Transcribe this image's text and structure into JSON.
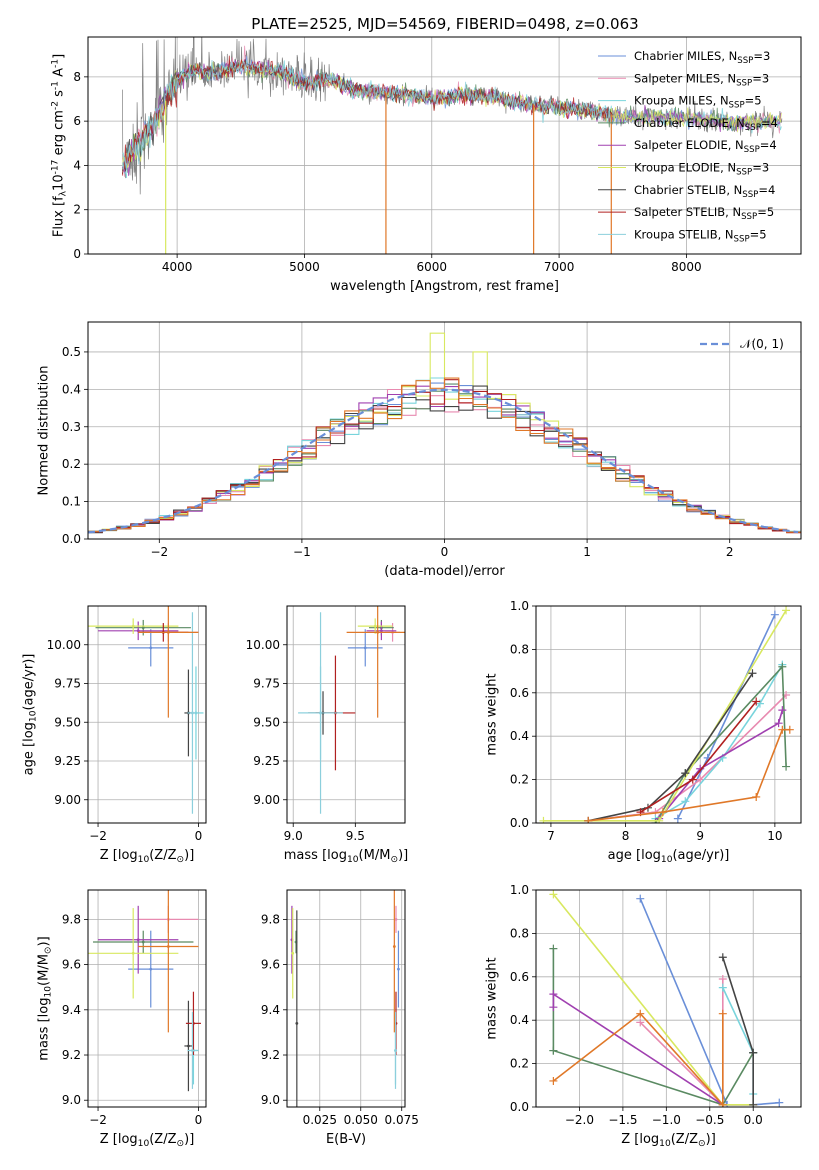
{
  "title": "PLATE=2525, MJD=54569, FIBERID=0498, z=0.063",
  "colors": {
    "Chabrier MILES": "#6a8fd8",
    "Salpeter MILES": "#e88ab0",
    "Kroupa MILES": "#78d4dc",
    "Chabrier ELODIE": "#5a8a62",
    "Salpeter ELODIE": "#a040b0",
    "Kroupa ELODIE": "#d8e860",
    "Chabrier STELIB": "#444444",
    "Salpeter STELIB": "#b02020",
    "Kroupa STELIB": "#8ccfdc",
    "orange": "#e07828",
    "gray": "#808080"
  },
  "chart_data": [
    {
      "id": "spectrum",
      "type": "line",
      "xlabel": "wavelength [Angstrom, rest frame]",
      "ylabel": "Flux [f$_λ$10$^{-17}$ erg cm$^{-2}$ s$^{-1}$ A$^{-1}$]",
      "xlim": [
        3300,
        8900
      ],
      "ylim": [
        0,
        9.8
      ],
      "xticks": [
        "4000",
        "5000",
        "6000",
        "7000",
        "8000"
      ],
      "yticks": [
        "0",
        "2",
        "4",
        "6",
        "8"
      ],
      "legend_position": "upper-right",
      "legend": [
        {
          "label": "Chabrier MILES, N",
          "sub": "SSP",
          "suffix": "=3"
        },
        {
          "label": "Salpeter MILES, N",
          "sub": "SSP",
          "suffix": "=3"
        },
        {
          "label": "Kroupa MILES, N",
          "sub": "SSP",
          "suffix": "=5"
        },
        {
          "label": "Chabrier ELODIE, N",
          "sub": "SSP",
          "suffix": "=4"
        },
        {
          "label": "Salpeter ELODIE, N",
          "sub": "SSP",
          "suffix": "=4"
        },
        {
          "label": "Kroupa ELODIE, N",
          "sub": "SSP",
          "suffix": "=3"
        },
        {
          "label": "Chabrier STELIB, N",
          "sub": "SSP",
          "suffix": "=4"
        },
        {
          "label": "Salpeter STELIB, N",
          "sub": "SSP",
          "suffix": "=5"
        },
        {
          "label": "Kroupa STELIB, N",
          "sub": "SSP",
          "suffix": "=5"
        }
      ],
      "continuum": [
        [
          3570,
          4.0
        ],
        [
          3650,
          4.6
        ],
        [
          3800,
          5.7
        ],
        [
          3900,
          6.8
        ],
        [
          4000,
          7.9
        ],
        [
          4100,
          8.3
        ],
        [
          4300,
          8.2
        ],
        [
          4500,
          8.5
        ],
        [
          4800,
          8.2
        ],
        [
          5000,
          7.7
        ],
        [
          5200,
          7.9
        ],
        [
          5400,
          7.4
        ],
        [
          5600,
          7.3
        ],
        [
          5800,
          7.2
        ],
        [
          6000,
          7.0
        ],
        [
          6300,
          7.2
        ],
        [
          6500,
          7.1
        ],
        [
          6700,
          6.8
        ],
        [
          6900,
          6.7
        ],
        [
          7200,
          6.5
        ],
        [
          7500,
          6.2
        ],
        [
          7800,
          6.2
        ],
        [
          8100,
          6.1
        ],
        [
          8400,
          5.9
        ],
        [
          8700,
          6.0
        ]
      ],
      "model_range": [
        3570,
        7420
      ],
      "spikes": [
        [
          5640,
          0
        ],
        [
          6800,
          0
        ],
        [
          7410,
          0
        ],
        [
          3910,
          0
        ]
      ]
    },
    {
      "id": "residuals",
      "type": "step-histogram",
      "xlabel": "(data-model)/error",
      "ylabel": "Normed distribution",
      "xlim": [
        -2.5,
        2.5
      ],
      "ylim": [
        0,
        0.58
      ],
      "xticks": [
        "−2",
        "−1",
        "0",
        "1",
        "2"
      ],
      "yticks": [
        "0.0",
        "0.1",
        "0.2",
        "0.3",
        "0.4",
        "0.5"
      ],
      "reference_curve": {
        "label": "𝒩(0, 1)",
        "mean": 0,
        "sigma": 1
      },
      "bin_width": 0.1,
      "peak_value": 0.55
    },
    {
      "id": "age-vs-Z",
      "type": "errorbar",
      "xlabel": "Z [log$_{10}$(Z/Z$_⊙$)]",
      "ylabel": "age  [log$_{10}$(age/yr)]",
      "xlim": [
        -2.2,
        0.15
      ],
      "ylim": [
        8.85,
        10.25
      ],
      "xticks": [
        "−2",
        "0"
      ],
      "yticks": [
        "9.00",
        "9.25",
        "9.50",
        "9.75",
        "10.00"
      ],
      "points": [
        {
          "series": "Chabrier MILES",
          "x": -0.95,
          "xerr": 0.45,
          "y": 9.98,
          "yerr": 0.12
        },
        {
          "series": "Salpeter MILES",
          "x": -0.6,
          "xerr": 0.6,
          "y": 10.08,
          "yerr": 0.06
        },
        {
          "series": "Kroupa MILES",
          "x": -0.05,
          "xerr": 0.15,
          "y": 9.56,
          "yerr": 0.3
        },
        {
          "series": "Chabrier ELODIE",
          "x": -1.1,
          "xerr": 0.95,
          "y": 10.11,
          "yerr": 0.05
        },
        {
          "series": "Salpeter ELODIE",
          "x": -1.2,
          "xerr": 0.8,
          "y": 10.09,
          "yerr": 0.06
        },
        {
          "series": "Kroupa ELODIE",
          "x": -1.3,
          "xerr": 0.9,
          "y": 10.12,
          "yerr": 0.05
        },
        {
          "series": "Chabrier STELIB",
          "x": -0.2,
          "xerr": 0.08,
          "y": 9.56,
          "yerr": 0.28
        },
        {
          "series": "Salpeter STELIB",
          "x": -0.7,
          "xerr": 0.5,
          "y": 10.08,
          "yerr": 0.06
        },
        {
          "series": "Kroupa STELIB",
          "x": -0.12,
          "xerr": 0.1,
          "y": 9.56,
          "yerr": 0.65
        },
        {
          "series": "orange",
          "x": -0.6,
          "xerr": 0.6,
          "y": 10.08,
          "yerr": 0.55
        }
      ]
    },
    {
      "id": "age-vs-mass",
      "type": "errorbar",
      "xlabel": "mass [log$_{10}$(M/M$_⊙$)]",
      "ylabel": "",
      "xlim": [
        8.95,
        9.9
      ],
      "ylim": [
        8.85,
        10.25
      ],
      "xticks": [
        "9.0",
        "9.5"
      ],
      "yticks": [
        "9.00",
        "9.25",
        "9.50",
        "9.75",
        "10.00"
      ],
      "points": [
        {
          "series": "Chabrier MILES",
          "x": 9.58,
          "xerr": 0.14,
          "y": 9.98,
          "yerr": 0.12
        },
        {
          "series": "Salpeter MILES",
          "x": 9.8,
          "xerr": 0.06,
          "y": 10.08,
          "yerr": 0.06
        },
        {
          "series": "Kroupa MILES",
          "x": 9.22,
          "xerr": 0.18,
          "y": 9.56,
          "yerr": 0.3
        },
        {
          "series": "Chabrier ELODIE",
          "x": 9.71,
          "xerr": 0.1,
          "y": 10.11,
          "yerr": 0.05
        },
        {
          "series": "Salpeter ELODIE",
          "x": 9.71,
          "xerr": 0.12,
          "y": 10.09,
          "yerr": 0.06
        },
        {
          "series": "Kroupa ELODIE",
          "x": 9.66,
          "xerr": 0.14,
          "y": 10.12,
          "yerr": 0.05
        },
        {
          "series": "Chabrier STELIB",
          "x": 9.24,
          "xerr": 0.12,
          "y": 9.56,
          "yerr": 0.14
        },
        {
          "series": "Salpeter STELIB",
          "x": 9.34,
          "xerr": 0.16,
          "y": 9.56,
          "yerr": 0.37
        },
        {
          "series": "Kroupa STELIB",
          "x": 9.22,
          "xerr": 0.18,
          "y": 9.56,
          "yerr": 0.65
        },
        {
          "series": "orange",
          "x": 9.68,
          "xerr": 0.25,
          "y": 10.08,
          "yerr": 0.55
        }
      ]
    },
    {
      "id": "weight-vs-age",
      "type": "line",
      "xlabel": "age  [log$_{10}$(age/yr)]",
      "ylabel": "mass weight",
      "xlim": [
        6.8,
        10.35
      ],
      "ylim": [
        0,
        1.0
      ],
      "xticks": [
        "7",
        "8",
        "9",
        "10"
      ],
      "yticks": [
        "0.0",
        "0.2",
        "0.4",
        "0.6",
        "0.8",
        "1.0"
      ],
      "series": [
        {
          "name": "Chabrier MILES",
          "x": [
            8.7,
            9.1,
            10.0
          ],
          "y": [
            0.02,
            0.3,
            0.96
          ]
        },
        {
          "name": "Salpeter MILES",
          "x": [
            7.5,
            8.4,
            9.0,
            10.15
          ],
          "y": [
            0.01,
            0.05,
            0.2,
            0.59
          ]
        },
        {
          "name": "Kroupa MILES",
          "x": [
            8.4,
            8.8,
            9.3,
            9.8,
            10.1
          ],
          "y": [
            0.02,
            0.1,
            0.3,
            0.55,
            0.73
          ]
        },
        {
          "name": "Chabrier ELODIE",
          "x": [
            8.4,
            8.8,
            10.1,
            10.15
          ],
          "y": [
            0.0,
            0.23,
            0.72,
            0.26
          ]
        },
        {
          "name": "Salpeter ELODIE",
          "x": [
            8.45,
            9.0,
            10.05,
            10.1
          ],
          "y": [
            0.02,
            0.25,
            0.46,
            0.52
          ]
        },
        {
          "name": "Kroupa ELODIE",
          "x": [
            6.9,
            8.45,
            10.15
          ],
          "y": [
            0.01,
            0.01,
            0.98
          ]
        },
        {
          "name": "Chabrier STELIB",
          "x": [
            7.5,
            8.3,
            8.8,
            9.7
          ],
          "y": [
            0.01,
            0.07,
            0.23,
            0.69
          ]
        },
        {
          "name": "Salpeter STELIB",
          "x": [
            8.2,
            8.9,
            9.75
          ],
          "y": [
            0.05,
            0.2,
            0.56
          ]
        },
        {
          "name": "orange",
          "x": [
            7.5,
            8.5,
            9.75,
            10.1,
            10.2
          ],
          "y": [
            0.01,
            0.05,
            0.12,
            0.43,
            0.43
          ]
        }
      ]
    },
    {
      "id": "mass-vs-Z",
      "type": "errorbar",
      "xlabel": "Z [log$_{10}$(Z/Z$_⊙$)]",
      "ylabel": "mass [log$_{10}$(M/M$_⊙$)]",
      "xlim": [
        -2.2,
        0.15
      ],
      "ylim": [
        8.97,
        9.93
      ],
      "xticks": [
        "−2",
        "0"
      ],
      "yticks": [
        "9.0",
        "9.2",
        "9.4",
        "9.6",
        "9.8"
      ],
      "points": [
        {
          "series": "Chabrier MILES",
          "x": -0.95,
          "xerr": 0.45,
          "y": 9.58,
          "yerr": 0.17
        },
        {
          "series": "Salpeter MILES",
          "x": -0.6,
          "xerr": 0.6,
          "y": 9.8,
          "yerr": 0.06
        },
        {
          "series": "Kroupa MILES",
          "x": -0.1,
          "xerr": 0.1,
          "y": 9.22,
          "yerr": 0.15
        },
        {
          "series": "Chabrier ELODIE",
          "x": -1.1,
          "xerr": 1.0,
          "y": 9.7,
          "yerr": 0.05
        },
        {
          "series": "Salpeter ELODIE",
          "x": -1.2,
          "xerr": 0.8,
          "y": 9.71,
          "yerr": 0.15
        },
        {
          "series": "Kroupa ELODIE",
          "x": -1.3,
          "xerr": 0.9,
          "y": 9.65,
          "yerr": 0.2
        },
        {
          "series": "Chabrier STELIB",
          "x": -0.2,
          "xerr": 0.08,
          "y": 9.24,
          "yerr": 0.2
        },
        {
          "series": "Salpeter STELIB",
          "x": -0.1,
          "xerr": 0.15,
          "y": 9.34,
          "yerr": 0.14
        },
        {
          "series": "Kroupa STELIB",
          "x": -0.12,
          "xerr": 0.1,
          "y": 9.22,
          "yerr": 0.17
        },
        {
          "series": "orange",
          "x": -0.6,
          "xerr": 0.6,
          "y": 9.68,
          "yerr": 0.38
        }
      ]
    },
    {
      "id": "mass-vs-ebv",
      "type": "errorbar",
      "xlabel": "E(B-V)",
      "ylabel": "",
      "xlim": [
        0.005,
        0.077
      ],
      "ylim": [
        8.97,
        9.93
      ],
      "xticks": [
        "0.025",
        "0.050",
        "0.075"
      ],
      "yticks": [
        "9.0",
        "9.2",
        "9.4",
        "9.6",
        "9.8"
      ],
      "points": [
        {
          "series": "Chabrier MILES",
          "x": 0.073,
          "xerr": 0,
          "y": 9.58,
          "yerr": 0.17
        },
        {
          "series": "Salpeter MILES",
          "x": 0.0715,
          "xerr": 0,
          "y": 9.8,
          "yerr": 0.06
        },
        {
          "series": "Kroupa MILES",
          "x": 0.0712,
          "xerr": 0,
          "y": 9.22,
          "yerr": 0.15
        },
        {
          "series": "Chabrier ELODIE",
          "x": 0.0105,
          "xerr": 0,
          "y": 9.7,
          "yerr": 0.05
        },
        {
          "series": "Salpeter ELODIE",
          "x": 0.008,
          "xerr": 0,
          "y": 9.71,
          "yerr": 0.15
        },
        {
          "series": "Kroupa ELODIE",
          "x": 0.0085,
          "xerr": 0,
          "y": 9.65,
          "yerr": 0.2
        },
        {
          "series": "Chabrier STELIB",
          "x": 0.011,
          "xerr": 0,
          "y": 9.34,
          "yerr": 0.5
        },
        {
          "series": "Salpeter STELIB",
          "x": 0.0715,
          "xerr": 0,
          "y": 9.34,
          "yerr": 0.14
        },
        {
          "series": "Kroupa STELIB",
          "x": 0.0712,
          "xerr": 0,
          "y": 9.22,
          "yerr": 0.17
        },
        {
          "series": "orange",
          "x": 0.0705,
          "xerr": 0,
          "y": 9.68,
          "yerr": 0.38
        }
      ]
    },
    {
      "id": "weight-vs-Z",
      "type": "line",
      "xlabel": "Z [log$_{10}$(Z/Z$_⊙$)]",
      "ylabel": "mass weight",
      "xlim": [
        -2.5,
        0.55
      ],
      "ylim": [
        0,
        1.0
      ],
      "xticks": [
        "−2.0",
        "−1.5",
        "−1.0",
        "−0.5",
        "0.0"
      ],
      "yticks": [
        "0.0",
        "0.2",
        "0.4",
        "0.6",
        "0.8",
        "1.0"
      ],
      "series": [
        {
          "name": "Chabrier MILES",
          "x": [
            -1.3,
            -0.3,
            0.0,
            0.3
          ],
          "y": [
            0.96,
            0.01,
            0.01,
            0.02
          ]
        },
        {
          "name": "Salpeter MILES",
          "x": [
            -1.3,
            -0.35,
            -0.35
          ],
          "y": [
            0.39,
            0.01,
            0.59
          ]
        },
        {
          "name": "Kroupa MILES",
          "x": [
            -0.35,
            0.0,
            0.0
          ],
          "y": [
            0.55,
            0.25,
            0.06
          ]
        },
        {
          "name": "Chabrier ELODIE",
          "x": [
            -2.3,
            -2.3,
            -2.3,
            -0.35,
            0.0
          ],
          "y": [
            0.73,
            0.26,
            0.26,
            0.01,
            0.25
          ]
        },
        {
          "name": "Salpeter ELODIE",
          "x": [
            -2.3,
            -2.3,
            -0.35,
            0.0
          ],
          "y": [
            0.46,
            0.52,
            0.01,
            0.01
          ]
        },
        {
          "name": "Kroupa ELODIE",
          "x": [
            -2.3,
            -0.35,
            0.0
          ],
          "y": [
            0.98,
            0.01,
            0.01
          ]
        },
        {
          "name": "Chabrier STELIB",
          "x": [
            -0.35,
            0.0,
            0.0
          ],
          "y": [
            0.69,
            0.25,
            0.01
          ]
        },
        {
          "name": "orange",
          "x": [
            -2.3,
            -1.3,
            -0.35,
            -0.35
          ],
          "y": [
            0.12,
            0.43,
            0.01,
            0.43
          ]
        }
      ]
    }
  ]
}
